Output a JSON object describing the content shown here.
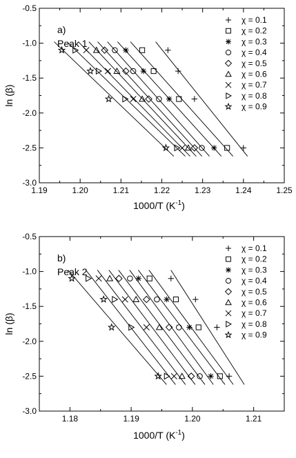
{
  "chart_data": [
    {
      "type": "scatter",
      "panel_label": "a)",
      "title": "Peak 1",
      "xlabel": "1000/T (K",
      "xlabel_sup": "-1",
      "xlabel_close": ")",
      "ylabel": "ln (β)",
      "xlim": [
        1.19,
        1.25
      ],
      "ylim": [
        -3.0,
        -0.5
      ],
      "x_ticks": [
        1.19,
        1.2,
        1.21,
        1.22,
        1.23,
        1.24,
        1.25
      ],
      "x_tick_labels": [
        "1.19",
        "1.20",
        "1.21",
        "1.22",
        "1.23",
        "1.24",
        "1.25"
      ],
      "y_ticks": [
        -3.0,
        -2.5,
        -2.0,
        -1.5,
        -1.0,
        -0.5
      ],
      "y_tick_labels": [
        "-3.0",
        "-2.5",
        "-2.0",
        "-1.5",
        "-1.0",
        "-0.5"
      ],
      "grid": false,
      "legend_position": "top-right",
      "fit_lines": true,
      "y_levels": [
        -1.1,
        -1.4,
        -1.8,
        -2.5
      ],
      "series": [
        {
          "name": "χ = 0.1",
          "marker": "plus",
          "x": [
            1.2215,
            1.224,
            1.228,
            1.24
          ],
          "y": [
            -1.1,
            -1.4,
            -1.8,
            -2.5
          ]
        },
        {
          "name": "χ = 0.2",
          "marker": "square",
          "x": [
            1.2152,
            1.218,
            1.2242,
            1.236
          ],
          "y": [
            -1.1,
            -1.4,
            -1.8,
            -2.5
          ]
        },
        {
          "name": "χ = 0.3",
          "marker": "asterisk",
          "x": [
            1.2112,
            1.2155,
            1.2218,
            1.2328
          ],
          "y": [
            -1.1,
            -1.4,
            -1.8,
            -2.5
          ]
        },
        {
          "name": "χ = 0.4",
          "marker": "circle",
          "x": [
            1.2085,
            1.213,
            1.2193,
            1.2298
          ],
          "y": [
            -1.1,
            -1.4,
            -1.8,
            -2.5
          ]
        },
        {
          "name": "χ = 0.5",
          "marker": "diamond",
          "x": [
            1.206,
            1.2112,
            1.2168,
            1.228
          ],
          "y": [
            -1.1,
            -1.4,
            -1.8,
            -2.5
          ]
        },
        {
          "name": "χ = 0.6",
          "marker": "triangle-up",
          "x": [
            1.204,
            1.209,
            1.2152,
            1.2265
          ],
          "y": [
            -1.1,
            -1.4,
            -1.8,
            -2.5
          ]
        },
        {
          "name": "χ = 0.7",
          "marker": "x",
          "x": [
            1.2015,
            1.2068,
            1.213,
            1.225
          ],
          "y": [
            -1.1,
            -1.4,
            -1.8,
            -2.5
          ]
        },
        {
          "name": "χ = 0.8",
          "marker": "triangle-right",
          "x": [
            1.1988,
            1.2045,
            1.211,
            1.2237
          ],
          "y": [
            -1.1,
            -1.4,
            -1.8,
            -2.5
          ]
        },
        {
          "name": "χ = 0.9",
          "marker": "star",
          "x": [
            1.1955,
            1.2025,
            1.207,
            1.221
          ],
          "y": [
            -1.1,
            -1.4,
            -1.8,
            -2.5
          ]
        }
      ]
    },
    {
      "type": "scatter",
      "panel_label": "b)",
      "title": "Peak 2",
      "xlabel": "1000/T (K",
      "xlabel_sup": "-1",
      "xlabel_close": ")",
      "ylabel": "ln (β)",
      "xlim": [
        1.175,
        1.215
      ],
      "ylim": [
        -3.0,
        -0.5
      ],
      "x_ticks": [
        1.18,
        1.19,
        1.2,
        1.21
      ],
      "x_tick_labels": [
        "1.18",
        "1.19",
        "1.20",
        "1.21"
      ],
      "y_ticks": [
        -3.0,
        -2.5,
        -2.0,
        -1.5,
        -1.0,
        -0.5
      ],
      "y_tick_labels": [
        "-3.0",
        "-2.5",
        "-2.0",
        "-1.5",
        "-1.0",
        "-0.5"
      ],
      "grid": false,
      "legend_position": "top-right",
      "fit_lines": true,
      "y_levels": [
        -1.1,
        -1.4,
        -1.8,
        -2.5
      ],
      "series": [
        {
          "name": "χ = 0.1",
          "marker": "plus",
          "x": [
            1.1965,
            1.2005,
            1.204,
            1.206
          ],
          "y": [
            -1.1,
            -1.4,
            -1.8,
            -2.5
          ]
        },
        {
          "name": "χ = 0.2",
          "marker": "square",
          "x": [
            1.193,
            1.1973,
            1.201,
            1.2045
          ],
          "y": [
            -1.1,
            -1.4,
            -1.8,
            -2.5
          ]
        },
        {
          "name": "χ = 0.3",
          "marker": "asterisk",
          "x": [
            1.1912,
            1.1958,
            1.1995,
            1.203
          ],
          "y": [
            -1.1,
            -1.4,
            -1.8,
            -2.5
          ]
        },
        {
          "name": "χ = 0.4",
          "marker": "circle",
          "x": [
            1.1898,
            1.1942,
            1.1978,
            1.2012
          ],
          "y": [
            -1.1,
            -1.4,
            -1.8,
            -2.5
          ]
        },
        {
          "name": "χ = 0.5",
          "marker": "diamond",
          "x": [
            1.188,
            1.1925,
            1.1962,
            1.1998
          ],
          "y": [
            -1.1,
            -1.4,
            -1.8,
            -2.5
          ]
        },
        {
          "name": "χ = 0.6",
          "marker": "triangle-up",
          "x": [
            1.1865,
            1.1908,
            1.1946,
            1.1983
          ],
          "y": [
            -1.1,
            -1.4,
            -1.8,
            -2.5
          ]
        },
        {
          "name": "χ = 0.7",
          "marker": "x",
          "x": [
            1.1847,
            1.189,
            1.1925,
            1.197
          ],
          "y": [
            -1.1,
            -1.4,
            -1.8,
            -2.5
          ]
        },
        {
          "name": "χ = 0.8",
          "marker": "triangle-right",
          "x": [
            1.183,
            1.1873,
            1.19,
            1.1958
          ],
          "y": [
            -1.1,
            -1.4,
            -1.8,
            -2.5
          ]
        },
        {
          "name": "χ = 0.9",
          "marker": "star",
          "x": [
            1.1803,
            1.1855,
            1.1868,
            1.1944
          ],
          "y": [
            -1.1,
            -1.4,
            -1.8,
            -2.5
          ]
        }
      ]
    }
  ]
}
